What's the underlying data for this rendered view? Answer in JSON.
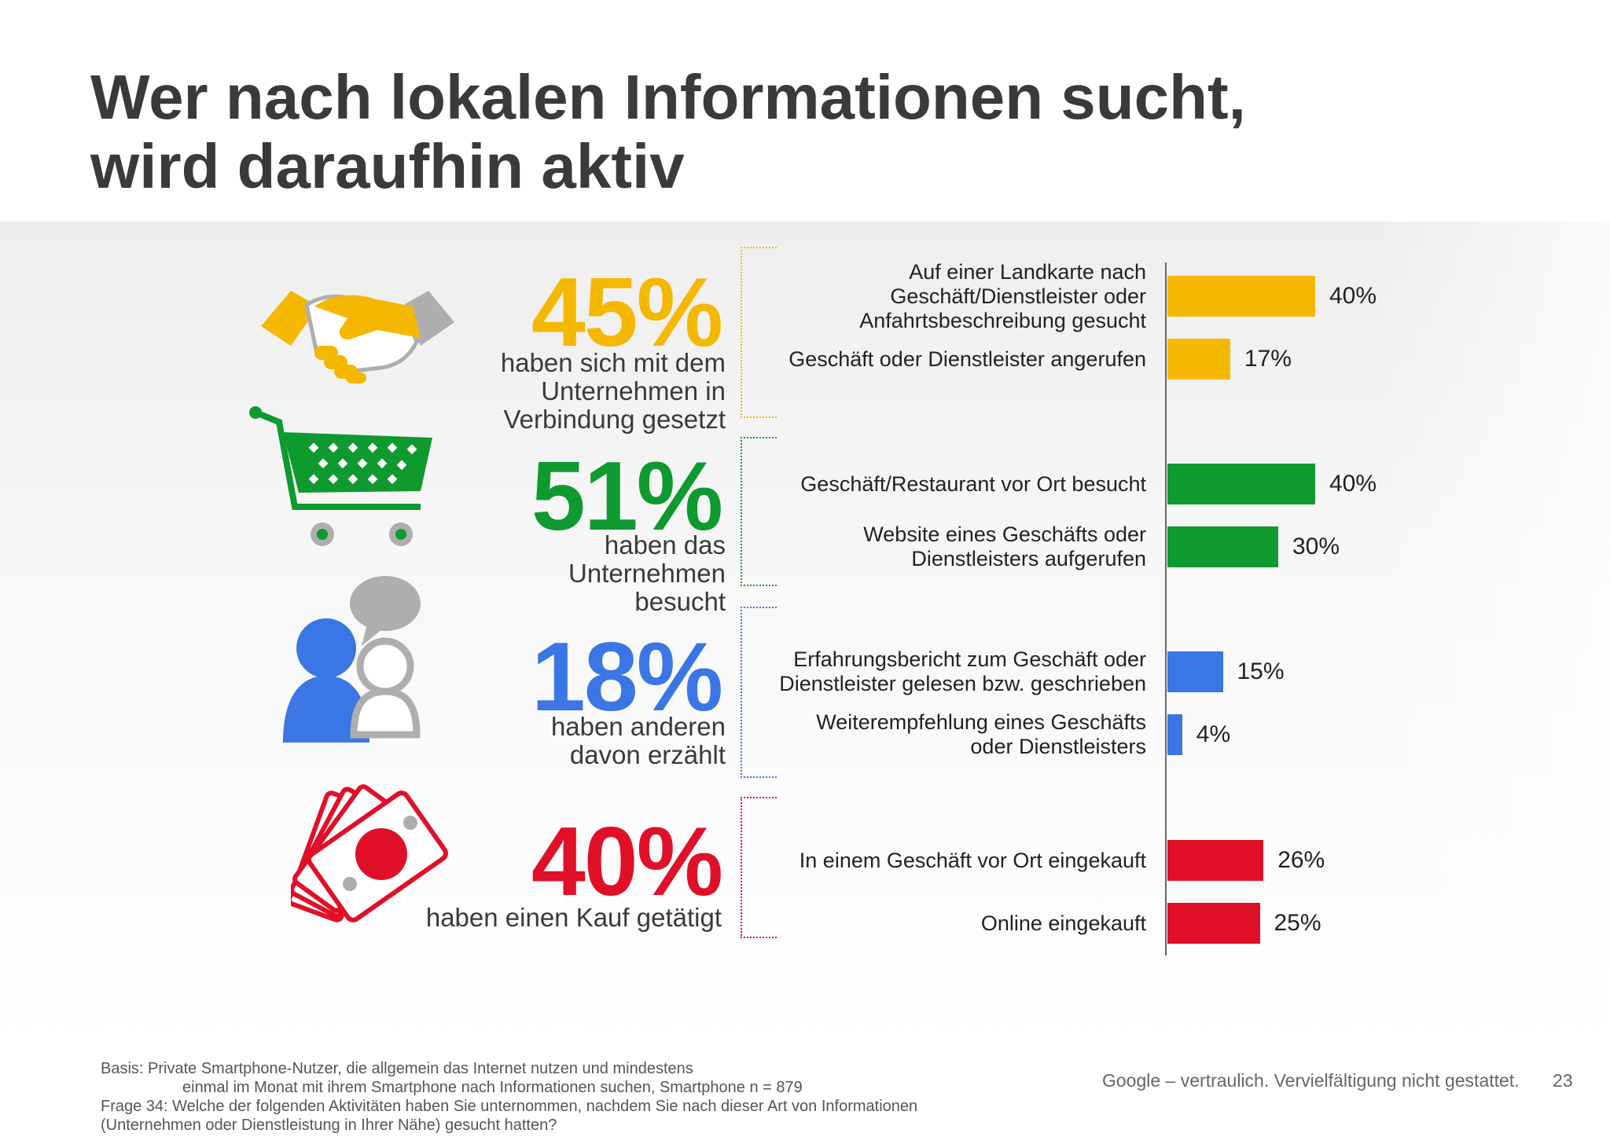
{
  "title": "Wer nach lokalen Informationen sucht,\nwird daraufhin aktiv",
  "colors": {
    "yellow": "#F5B800",
    "green": "#0E9A2F",
    "blue": "#3A76E4",
    "red": "#E01028"
  },
  "groups": [
    {
      "percent": "45%",
      "text": "haben sich mit dem\nUnternehmen in\nVerbindung gesetzt",
      "icon": "handshake-icon"
    },
    {
      "percent": "51%",
      "text": "haben das\nUnternehmen\nbesucht",
      "icon": "shopping-cart-icon"
    },
    {
      "percent": "18%",
      "text": "haben anderen\ndavon erzählt",
      "icon": "people-chat-icon"
    },
    {
      "percent": "40%",
      "text": "haben einen Kauf getätigt",
      "icon": "money-bills-icon"
    }
  ],
  "chart_data": {
    "type": "bar",
    "orientation": "horizontal",
    "categories": [
      "Auf einer Landkarte nach\nGeschäft/Dienstleister oder\nAnfahrtsbeschreibung gesucht",
      "Geschäft oder Dienstleister angerufen",
      "Geschäft/Restaurant vor Ort besucht",
      "Website eines Geschäfts oder\nDienstleisters aufgerufen",
      "Erfahrungsbericht zum Geschäft oder\nDienstleister gelesen bzw. geschrieben",
      "Weiterempfehlung eines Geschäfts\noder Dienstleisters",
      "In einem Geschäft vor Ort eingekauft",
      "Online eingekauft"
    ],
    "values": [
      40,
      17,
      40,
      30,
      15,
      4,
      26,
      25
    ],
    "value_labels": [
      "40%",
      "17%",
      "40%",
      "30%",
      "15%",
      "4%",
      "26%",
      "25%"
    ],
    "group_of_bar": [
      0,
      0,
      1,
      1,
      2,
      2,
      3,
      3
    ],
    "xlim": [
      0,
      40
    ]
  },
  "footnote": {
    "line1": "Basis: Private Smartphone-Nutzer, die allgemein das Internet nutzen und mindestens",
    "line2": "einmal im Monat mit ihrem Smartphone nach Informationen suchen, Smartphone n = 879",
    "line3": "Frage 34: Welche der folgenden Aktivitäten haben Sie unternommen, nachdem Sie nach dieser Art von Informationen",
    "line4": "(Unternehmen oder Dienstleistung in Ihrer Nähe) gesucht hatten?"
  },
  "confidential": "Google – vertraulich. Vervielfältigung nicht gestattet.",
  "page_number": "23"
}
